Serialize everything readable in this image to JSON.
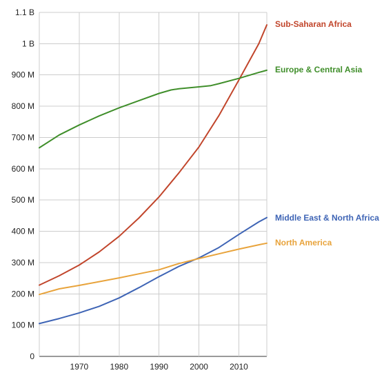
{
  "chart_data": {
    "type": "line",
    "x_range": [
      1960,
      2017
    ],
    "y_range": [
      0,
      1100000000
    ],
    "x_ticks": [
      {
        "value": 1970,
        "label": "1970"
      },
      {
        "value": 1980,
        "label": "1980"
      },
      {
        "value": 1990,
        "label": "1990"
      },
      {
        "value": 2000,
        "label": "2000"
      },
      {
        "value": 2010,
        "label": "2010"
      }
    ],
    "y_ticks": [
      {
        "value": 0,
        "label": "0"
      },
      {
        "value": 100000000,
        "label": "100 M"
      },
      {
        "value": 200000000,
        "label": "200 M"
      },
      {
        "value": 300000000,
        "label": "300 M"
      },
      {
        "value": 400000000,
        "label": "400 M"
      },
      {
        "value": 500000000,
        "label": "500 M"
      },
      {
        "value": 600000000,
        "label": "600 M"
      },
      {
        "value": 700000000,
        "label": "700 M"
      },
      {
        "value": 800000000,
        "label": "800 M"
      },
      {
        "value": 900000000,
        "label": "900 M"
      },
      {
        "value": 1000000000,
        "label": "1 B"
      },
      {
        "value": 1100000000,
        "label": "1.1 B"
      }
    ],
    "grid": true,
    "legend": "line-end labels",
    "series": [
      {
        "name": "Sub-Saharan Africa",
        "color": "#c1452b",
        "points": [
          [
            1960,
            228000000
          ],
          [
            1965,
            258000000
          ],
          [
            1970,
            292000000
          ],
          [
            1975,
            334000000
          ],
          [
            1980,
            384000000
          ],
          [
            1985,
            443000000
          ],
          [
            1990,
            510000000
          ],
          [
            1995,
            587000000
          ],
          [
            2000,
            670000000
          ],
          [
            2005,
            770000000
          ],
          [
            2010,
            884000000
          ],
          [
            2015,
            1000000000
          ],
          [
            2017,
            1060000000
          ]
        ]
      },
      {
        "name": "Europe & Central Asia",
        "color": "#3f8e2a",
        "points": [
          [
            1960,
            667000000
          ],
          [
            1965,
            708000000
          ],
          [
            1970,
            740000000
          ],
          [
            1975,
            769000000
          ],
          [
            1980,
            795000000
          ],
          [
            1985,
            818000000
          ],
          [
            1990,
            841000000
          ],
          [
            1993,
            852000000
          ],
          [
            1995,
            856000000
          ],
          [
            2000,
            862000000
          ],
          [
            2003,
            866000000
          ],
          [
            2005,
            872000000
          ],
          [
            2010,
            889000000
          ],
          [
            2015,
            908000000
          ],
          [
            2017,
            915000000
          ]
        ]
      },
      {
        "name": "Middle East & North Africa",
        "color": "#3e64b5",
        "points": [
          [
            1960,
            105000000
          ],
          [
            1965,
            121000000
          ],
          [
            1970,
            139000000
          ],
          [
            1975,
            160000000
          ],
          [
            1980,
            187000000
          ],
          [
            1985,
            220000000
          ],
          [
            1990,
            255000000
          ],
          [
            1992,
            268000000
          ],
          [
            1995,
            288000000
          ],
          [
            2000,
            315000000
          ],
          [
            2005,
            348000000
          ],
          [
            2010,
            390000000
          ],
          [
            2015,
            430000000
          ],
          [
            2017,
            444000000
          ]
        ]
      },
      {
        "name": "North America",
        "color": "#e8a33b",
        "points": [
          [
            1960,
            198000000
          ],
          [
            1965,
            216000000
          ],
          [
            1970,
            227000000
          ],
          [
            1975,
            239000000
          ],
          [
            1980,
            251000000
          ],
          [
            1985,
            264000000
          ],
          [
            1990,
            277000000
          ],
          [
            1995,
            297000000
          ],
          [
            2000,
            313000000
          ],
          [
            2005,
            328000000
          ],
          [
            2010,
            343000000
          ],
          [
            2015,
            357000000
          ],
          [
            2017,
            362000000
          ]
        ]
      }
    ]
  }
}
